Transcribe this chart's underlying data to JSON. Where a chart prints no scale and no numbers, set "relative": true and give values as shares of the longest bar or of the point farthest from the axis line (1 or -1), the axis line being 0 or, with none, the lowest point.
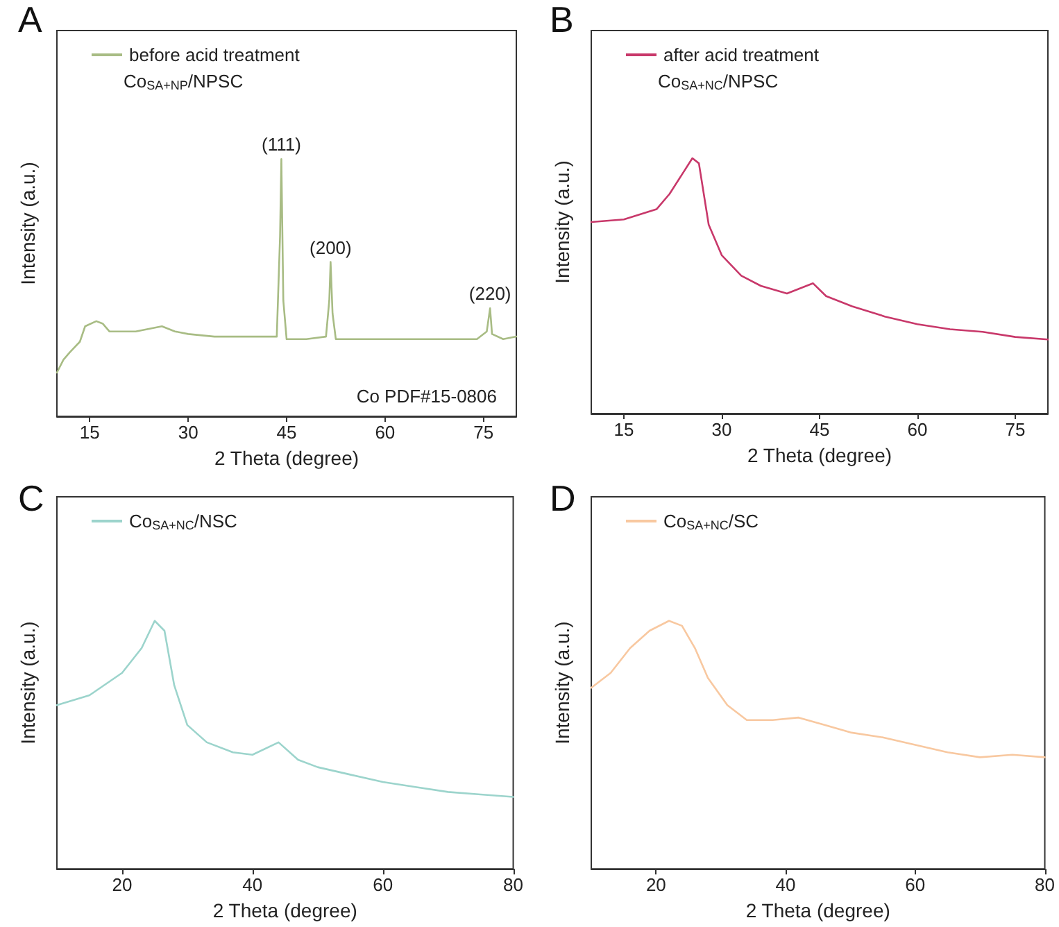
{
  "chart_data": [
    {
      "type": "line",
      "title": "A",
      "xlabel": "2 Theta (degree)",
      "ylabel": "Intensity (a.u.)",
      "relative": true,
      "xlim": [
        10,
        80
      ],
      "xticks": [
        15,
        30,
        45,
        60,
        75
      ],
      "tick_labels": "x",
      "grid": false,
      "legend": "top left",
      "marker": "none",
      "line_style": "solid",
      "series": [
        {
          "name": "before acid treatment",
          "color": "#a8bc84",
          "x": [
            10,
            11,
            12,
            13.5,
            14.3,
            16,
            17,
            18,
            20,
            22,
            24,
            26,
            28,
            30,
            34,
            38,
            42,
            43.5,
            44,
            44.2,
            44.5,
            45,
            48,
            51,
            51.5,
            51.7,
            52,
            52.5,
            56,
            60,
            65,
            70,
            74,
            75.5,
            76,
            76.3,
            78,
            80
          ],
          "values": [
            0.17,
            0.22,
            0.25,
            0.29,
            0.35,
            0.37,
            0.36,
            0.33,
            0.33,
            0.33,
            0.34,
            0.35,
            0.33,
            0.32,
            0.31,
            0.31,
            0.31,
            0.31,
            0.7,
            1.0,
            0.45,
            0.3,
            0.3,
            0.31,
            0.45,
            0.6,
            0.4,
            0.3,
            0.3,
            0.3,
            0.3,
            0.3,
            0.3,
            0.33,
            0.42,
            0.32,
            0.3,
            0.31
          ]
        }
      ],
      "annotations": [
        "Co$_{SA+NP}$/NPSC",
        "Co PDF#15-0806",
        {
          "text": "(111)",
          "x": 44.2,
          "y": 1.0
        },
        {
          "text": "(200)",
          "x": 51.7,
          "y": 0.6
        },
        {
          "text": "(220)",
          "x": 76,
          "y": 0.42
        }
      ]
    },
    {
      "type": "line",
      "title": "B",
      "xlabel": "2 Theta (degree)",
      "ylabel": "Intensity (a.u.)",
      "relative": true,
      "xlim": [
        10,
        80
      ],
      "xticks": [
        15,
        30,
        45,
        60,
        75
      ],
      "tick_labels": "x",
      "grid": false,
      "legend": "top left",
      "marker": "none",
      "line_style": "solid",
      "series": [
        {
          "name": "after acid treatment",
          "color": "#c8386a",
          "x": [
            10,
            15,
            20,
            22,
            24,
            25.5,
            26.5,
            28,
            30,
            33,
            36,
            40,
            44,
            46,
            50,
            55,
            60,
            65,
            70,
            75,
            80
          ],
          "values": [
            0.75,
            0.76,
            0.8,
            0.86,
            0.94,
            1.0,
            0.98,
            0.74,
            0.62,
            0.54,
            0.5,
            0.47,
            0.51,
            0.46,
            0.42,
            0.38,
            0.35,
            0.33,
            0.32,
            0.3,
            0.29
          ]
        }
      ],
      "annotations": [
        "Co$_{SA+NC}$/NPSC"
      ]
    },
    {
      "type": "line",
      "title": "C",
      "xlabel": "2 Theta (degree)",
      "ylabel": "Intensity (a.u.)",
      "relative": true,
      "xlim": [
        10,
        80
      ],
      "xticks": [
        20,
        40,
        60,
        80
      ],
      "tick_labels": "x",
      "grid": false,
      "legend": "top left",
      "marker": "none",
      "line_style": "solid",
      "series": [
        {
          "name": "Co$_{SA+NC}$/NSC",
          "color": "#9cd4cc",
          "x": [
            10,
            15,
            20,
            23,
            25,
            26.5,
            28,
            30,
            33,
            37,
            40,
            44,
            47,
            50,
            55,
            60,
            65,
            70,
            75,
            80
          ],
          "values": [
            0.66,
            0.7,
            0.79,
            0.89,
            1.0,
            0.96,
            0.74,
            0.58,
            0.51,
            0.47,
            0.46,
            0.51,
            0.44,
            0.41,
            0.38,
            0.35,
            0.33,
            0.31,
            0.3,
            0.29
          ]
        }
      ]
    },
    {
      "type": "line",
      "title": "D",
      "xlabel": "2 Theta (degree)",
      "ylabel": "Intensity (a.u.)",
      "relative": true,
      "xlim": [
        10,
        80
      ],
      "xticks": [
        20,
        40,
        60,
        80
      ],
      "tick_labels": "x",
      "grid": false,
      "legend": "top left",
      "marker": "none",
      "line_style": "solid",
      "series": [
        {
          "name": "Co$_{SA+NC}$/SC",
          "color": "#f8c8a0",
          "x": [
            10,
            13,
            16,
            19,
            22,
            24,
            26,
            28,
            31,
            34,
            38,
            42,
            46,
            50,
            55,
            60,
            65,
            70,
            75,
            80
          ],
          "values": [
            0.73,
            0.79,
            0.89,
            0.96,
            1.0,
            0.98,
            0.89,
            0.77,
            0.66,
            0.6,
            0.6,
            0.61,
            0.58,
            0.55,
            0.53,
            0.5,
            0.47,
            0.45,
            0.46,
            0.45
          ]
        }
      ]
    }
  ]
}
